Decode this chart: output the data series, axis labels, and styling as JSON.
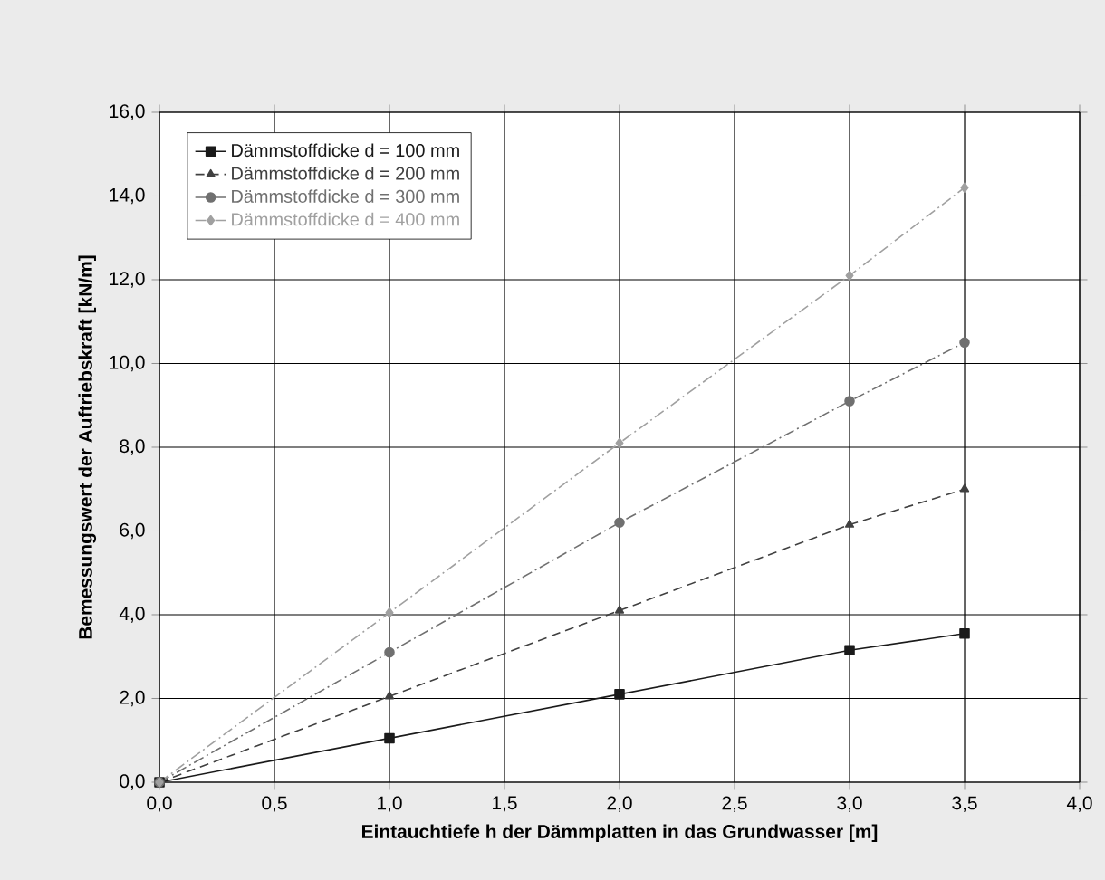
{
  "chart_data": {
    "type": "line",
    "xlabel": "Eintauchtiefe h der Dämmplatten in das Grundwasser [m]",
    "ylabel": "Bemessungswert der Auftriebskraft [kN/m]",
    "xlim": [
      0,
      4
    ],
    "ylim": [
      0,
      16
    ],
    "xticks": [
      {
        "value": 0,
        "label": "0,0"
      },
      {
        "value": 0.5,
        "label": "0,5"
      },
      {
        "value": 1,
        "label": "1,0"
      },
      {
        "value": 1.5,
        "label": "1,5"
      },
      {
        "value": 2,
        "label": "2,0"
      },
      {
        "value": 2.5,
        "label": "2,5"
      },
      {
        "value": 3,
        "label": "3,0"
      },
      {
        "value": 3.5,
        "label": "3,5"
      },
      {
        "value": 4,
        "label": "4,0"
      }
    ],
    "yticks": [
      {
        "value": 0,
        "label": "0,0"
      },
      {
        "value": 2,
        "label": "2,0"
      },
      {
        "value": 4,
        "label": "4,0"
      },
      {
        "value": 6,
        "label": "6,0"
      },
      {
        "value": 8,
        "label": "8,0"
      },
      {
        "value": 10,
        "label": "10,0"
      },
      {
        "value": 12,
        "label": "12,0"
      },
      {
        "value": 14,
        "label": "14,0"
      },
      {
        "value": 16,
        "label": "16,0"
      }
    ],
    "grid": true,
    "legend": "top left",
    "x": [
      0,
      1,
      2,
      3,
      3.5
    ],
    "series": [
      {
        "name": "Dämmstoffdicke d = 100 mm",
        "color": "#1a1a1a",
        "marker": "square",
        "line_style": "solid",
        "values": [
          0,
          1.05,
          2.1,
          3.15,
          3.55
        ]
      },
      {
        "name": "Dämmstoffdicke d = 200 mm",
        "color": "#404040",
        "marker": "triangle",
        "line_style": "dashed",
        "values": [
          0,
          2.05,
          4.1,
          6.15,
          7.0
        ]
      },
      {
        "name": "Dämmstoffdicke d = 300 mm",
        "color": "#707070",
        "marker": "circle",
        "line_style": "dashdot",
        "values": [
          0,
          3.1,
          6.2,
          9.1,
          10.5
        ]
      },
      {
        "name": "Dämmstoffdicke d = 400 mm",
        "color": "#a0a0a0",
        "marker": "diamond",
        "line_style": "dashdot",
        "values": [
          0,
          4.05,
          8.1,
          12.1,
          14.2
        ]
      }
    ]
  }
}
